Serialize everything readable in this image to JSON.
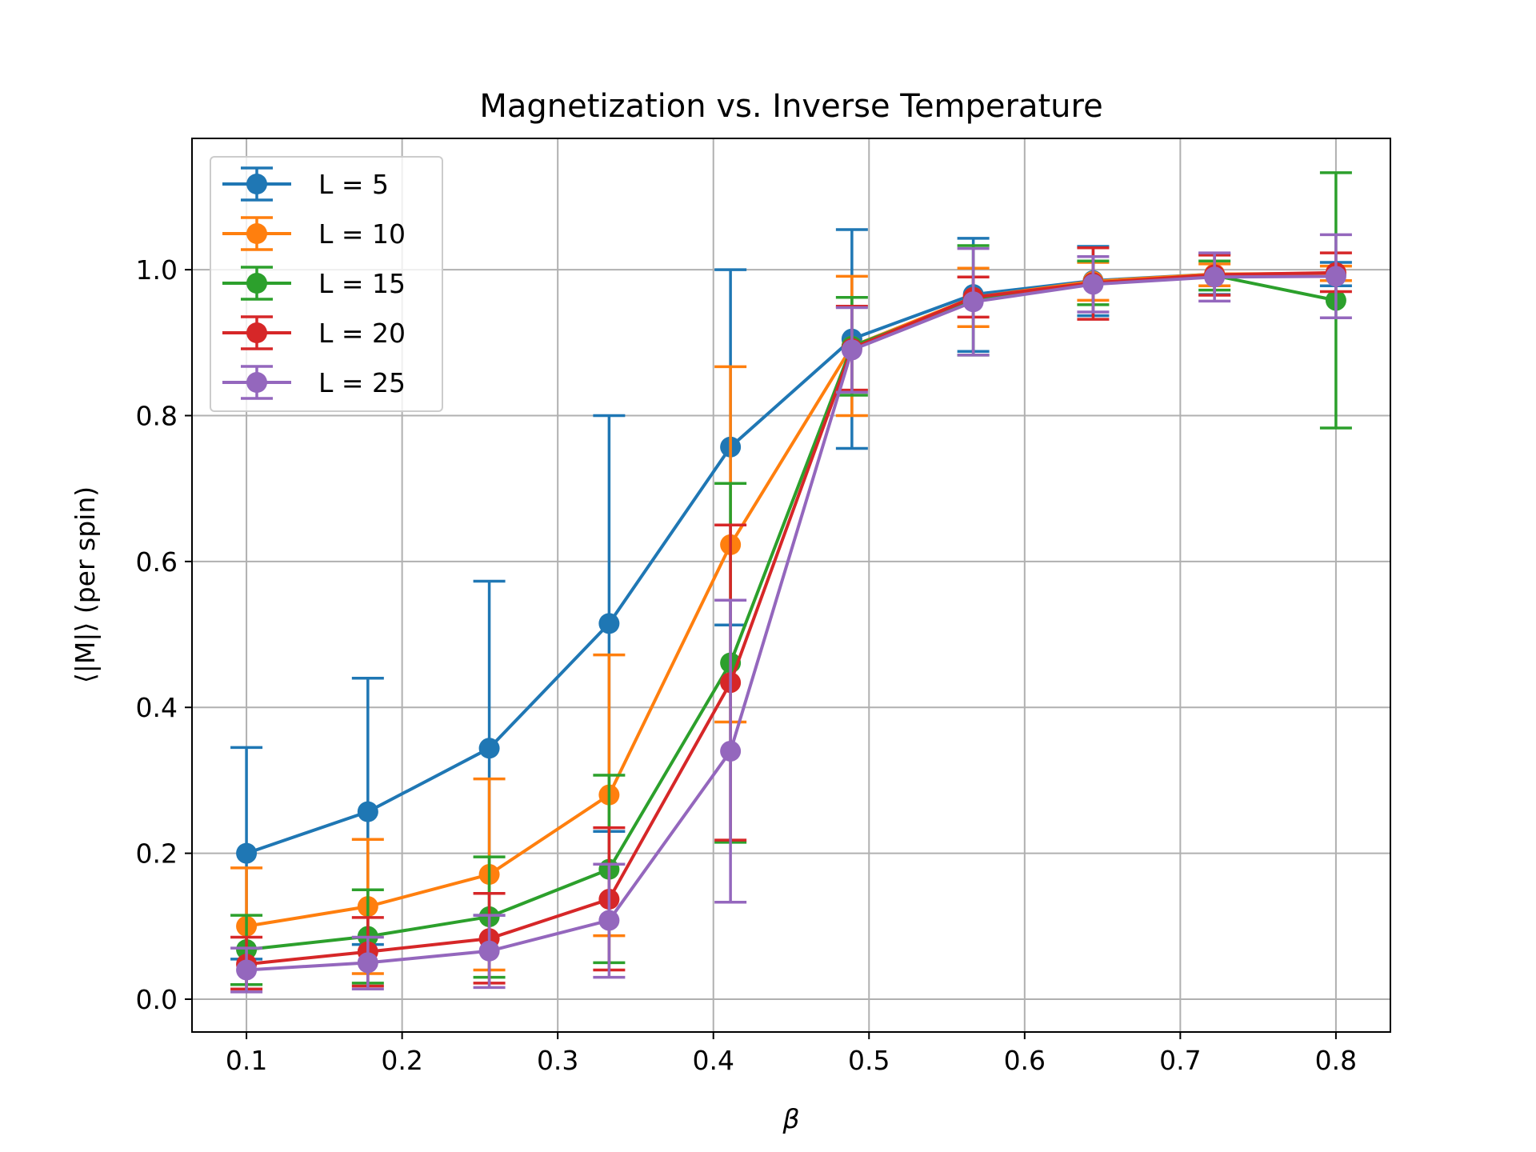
{
  "chart_data": {
    "type": "line",
    "title": "Magnetization vs. Inverse Temperature",
    "xlabel": "β",
    "ylabel": "⟨|M|⟩ (per spin)",
    "xlim": [
      0.065,
      0.835
    ],
    "ylim": [
      -0.045,
      1.18
    ],
    "x_ticks": [
      "0.1",
      "0.2",
      "0.3",
      "0.4",
      "0.5",
      "0.6",
      "0.7",
      "0.8"
    ],
    "y_ticks": [
      "0.0",
      "0.2",
      "0.4",
      "0.6",
      "0.8",
      "1.0"
    ],
    "grid": true,
    "legend_position": "upper-left",
    "x": [
      0.1,
      0.178,
      0.256,
      0.333,
      0.411,
      0.489,
      0.567,
      0.644,
      0.722,
      0.8
    ],
    "series": [
      {
        "name": "L = 5",
        "color": "#1f77b4",
        "values": [
          0.2,
          0.257,
          0.344,
          0.515,
          0.757,
          0.905,
          0.966,
          0.985,
          0.994,
          0.994
        ],
        "err_low": [
          0.055,
          0.075,
          0.115,
          0.23,
          0.513,
          0.755,
          0.888,
          0.937,
          0.966,
          0.978
        ],
        "err_high": [
          0.345,
          0.44,
          0.573,
          0.8,
          1.0,
          1.055,
          1.043,
          1.032,
          1.022,
          1.01
        ]
      },
      {
        "name": "L = 10",
        "color": "#ff7f0e",
        "values": [
          0.1,
          0.127,
          0.171,
          0.28,
          0.623,
          0.895,
          0.962,
          0.984,
          0.994,
          0.995
        ],
        "err_low": [
          0.02,
          0.035,
          0.04,
          0.087,
          0.38,
          0.8,
          0.922,
          0.958,
          0.978,
          0.985
        ],
        "err_high": [
          0.18,
          0.219,
          0.302,
          0.472,
          0.867,
          0.991,
          1.002,
          1.01,
          1.008,
          1.005
        ]
      },
      {
        "name": "L = 15",
        "color": "#2ca02c",
        "values": [
          0.068,
          0.086,
          0.113,
          0.178,
          0.461,
          0.895,
          0.958,
          0.982,
          0.992,
          0.958
        ],
        "err_low": [
          0.02,
          0.022,
          0.03,
          0.05,
          0.215,
          0.828,
          0.883,
          0.952,
          0.972,
          0.783
        ],
        "err_high": [
          0.115,
          0.15,
          0.195,
          0.307,
          0.707,
          0.962,
          1.033,
          1.012,
          1.012,
          1.133
        ]
      },
      {
        "name": "L = 20",
        "color": "#d62728",
        "values": [
          0.048,
          0.065,
          0.083,
          0.137,
          0.434,
          0.892,
          0.962,
          0.982,
          0.993,
          0.996
        ],
        "err_low": [
          0.014,
          0.018,
          0.022,
          0.04,
          0.218,
          0.835,
          0.935,
          0.932,
          0.965,
          0.97
        ],
        "err_high": [
          0.085,
          0.112,
          0.145,
          0.235,
          0.65,
          0.95,
          0.99,
          1.03,
          1.02,
          1.023
        ]
      },
      {
        "name": "L = 25",
        "color": "#9467bd",
        "values": [
          0.04,
          0.05,
          0.066,
          0.108,
          0.34,
          0.89,
          0.956,
          0.98,
          0.99,
          0.991
        ],
        "err_low": [
          0.01,
          0.014,
          0.016,
          0.03,
          0.133,
          0.832,
          0.883,
          0.942,
          0.957,
          0.934
        ],
        "err_high": [
          0.07,
          0.085,
          0.115,
          0.185,
          0.547,
          0.948,
          1.029,
          1.018,
          1.023,
          1.048
        ]
      }
    ]
  }
}
